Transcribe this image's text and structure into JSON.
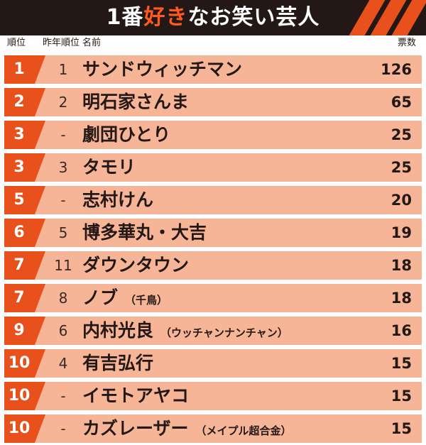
{
  "title": {
    "pre": "1番",
    "highlight": "好き",
    "post": "なお笑い芸人"
  },
  "header": {
    "rank": "順位",
    "prev_rank": "昨年順位",
    "name": "名前",
    "votes": "票数"
  },
  "colors": {
    "accent": "#e8501c",
    "row_bg": "#f7b597",
    "dark": "#231815"
  },
  "rows": [
    {
      "rank": "1",
      "prev": "1",
      "name": "サンドウィッチマン",
      "note": "",
      "votes": "126"
    },
    {
      "rank": "2",
      "prev": "2",
      "name": "明石家さんま",
      "note": "",
      "votes": "65"
    },
    {
      "rank": "3",
      "prev": "-",
      "name": "劇団ひとり",
      "note": "",
      "votes": "25"
    },
    {
      "rank": "3",
      "prev": "3",
      "name": "タモリ",
      "note": "",
      "votes": "25"
    },
    {
      "rank": "5",
      "prev": "-",
      "name": "志村けん",
      "note": "",
      "votes": "20"
    },
    {
      "rank": "6",
      "prev": "5",
      "name": "博多華丸・大吉",
      "note": "",
      "votes": "19"
    },
    {
      "rank": "7",
      "prev": "11",
      "name": "ダウンタウン",
      "note": "",
      "votes": "18"
    },
    {
      "rank": "7",
      "prev": "8",
      "name": "ノブ",
      "note": "（千鳥）",
      "votes": "18"
    },
    {
      "rank": "9",
      "prev": "6",
      "name": "内村光良",
      "note": "（ウッチャンナンチャン）",
      "votes": "16"
    },
    {
      "rank": "10",
      "prev": "4",
      "name": "有吉弘行",
      "note": "",
      "votes": "15"
    },
    {
      "rank": "10",
      "prev": "-",
      "name": "イモトアヤコ",
      "note": "",
      "votes": "15"
    },
    {
      "rank": "10",
      "prev": "-",
      "name": "カズレーザー",
      "note": "（メイプル超合金）",
      "votes": "15"
    }
  ]
}
